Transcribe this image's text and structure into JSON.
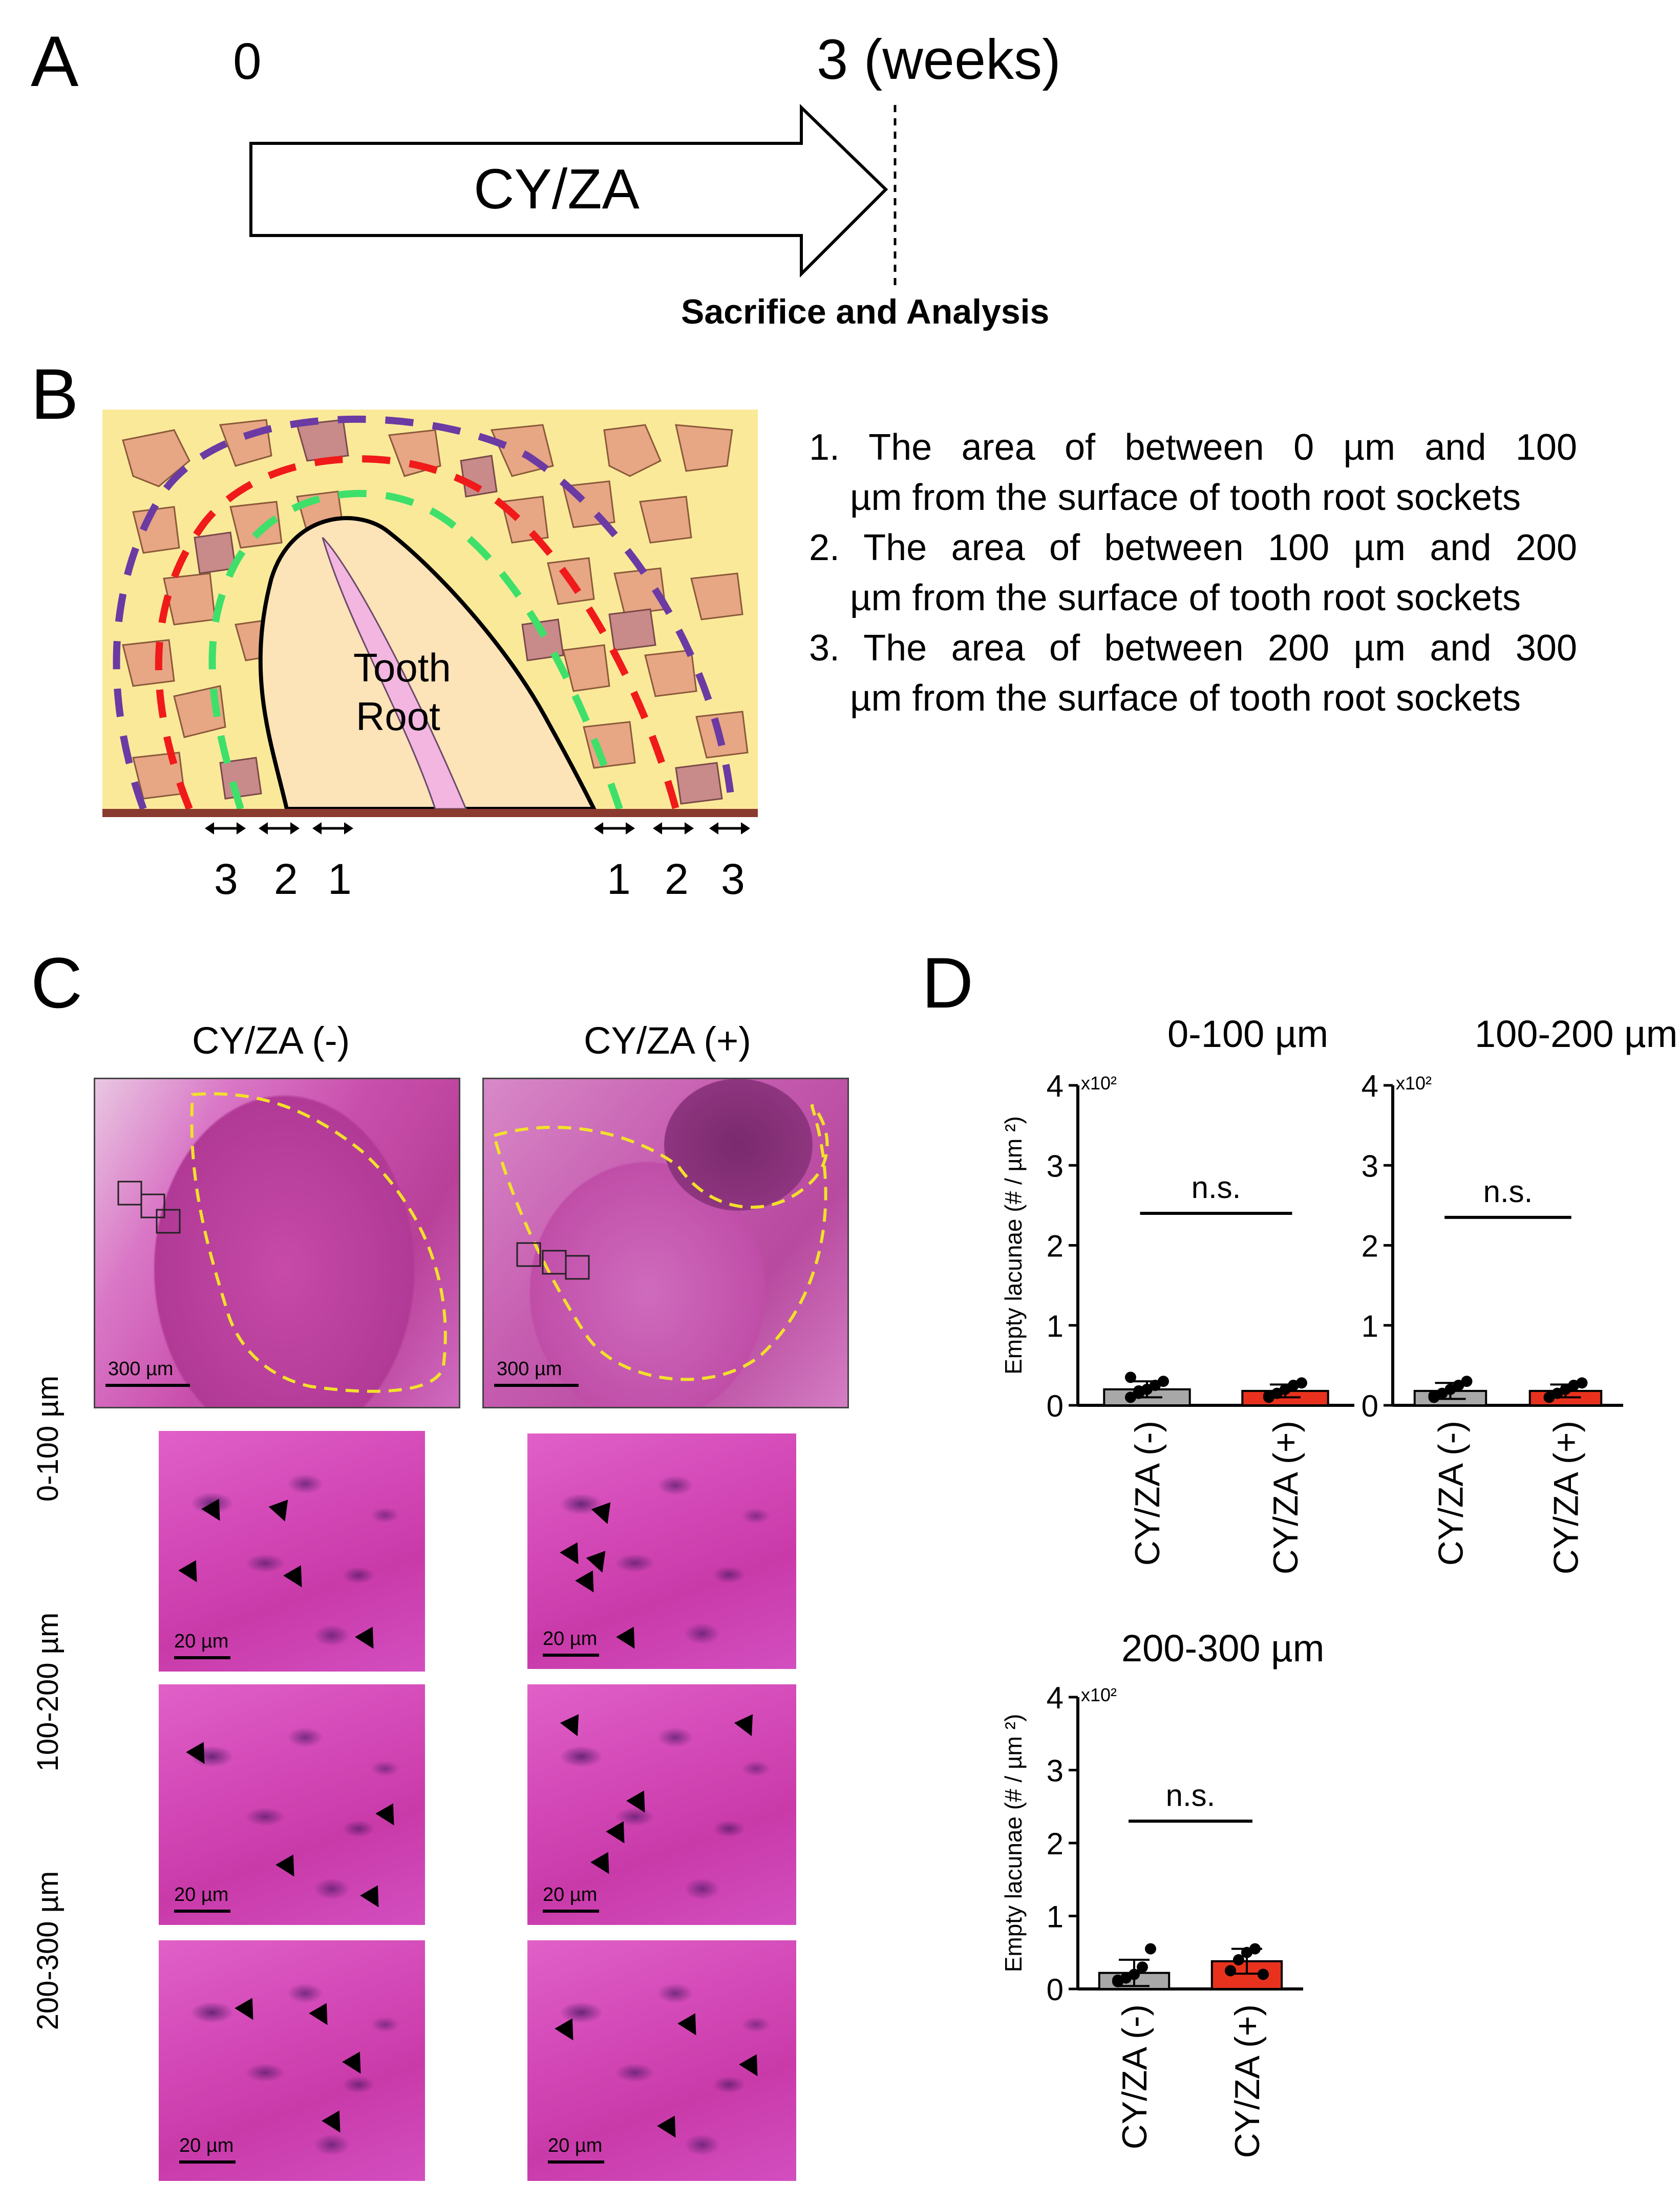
{
  "panelA": {
    "label": "A",
    "start": "0",
    "end": "3 (weeks)",
    "arrow_text": "CY/ZA",
    "footer": "Sacrifice and Analysis"
  },
  "panelB": {
    "label": "B",
    "tooth_label_1": "Tooth",
    "tooth_label_2": "Root",
    "zone_labels_left": [
      "3",
      "2",
      "1"
    ],
    "zone_labels_right": [
      "1",
      "2",
      "3"
    ],
    "descriptions": [
      {
        "num": "1.",
        "line1": "The area of between 0 µm and 100",
        "rest": "µm from the surface of  tooth root sockets"
      },
      {
        "num": "2.",
        "line1": "The area of between 100 µm and 200",
        "rest": "µm from the surface of tooth root sockets"
      },
      {
        "num": "3.",
        "line1": "The area of between 200 µm and 300",
        "rest": "µm from the surface of tooth root sockets"
      }
    ],
    "colors": {
      "tissue_bg": "#fbe99a",
      "green": "#3ee06a",
      "red": "#f01a1a",
      "purple": "#6b3aa3",
      "tooth": "#fde3b8",
      "pulp": "#f2b6e0"
    }
  },
  "panelC": {
    "label": "C",
    "col_minus": "CY/ZA (-)",
    "col_plus": "CY/ZA (+)",
    "overview_scale": "300 µm",
    "micro_scale": "20 µm",
    "rows": [
      "0-100 µm",
      "100-200 µm",
      "200-300 µm"
    ]
  },
  "panelD": {
    "label": "D",
    "ylabel": "Empty lacunae (# / µm ²)",
    "multiplier": "x10²",
    "ns": "n.s."
  },
  "chart_data": [
    {
      "type": "bar",
      "title": "0-100 µm",
      "categories": [
        "CY/ZA (-)",
        "CY/ZA (+)"
      ],
      "values": [
        0.2,
        0.18
      ],
      "errors": [
        0.1,
        0.08
      ],
      "points": [
        [
          0.1,
          0.15,
          0.2,
          0.25,
          0.3,
          0.35,
          0.18
        ],
        [
          0.1,
          0.15,
          0.2,
          0.25,
          0.28,
          0.12
        ]
      ],
      "colors": [
        "#a8a8a8",
        "#e8321e"
      ],
      "ylabel": "Empty lacunae (# / µm ²)",
      "yticks": [
        "0",
        "1",
        "2",
        "3",
        "4"
      ],
      "ylim": [
        0,
        4
      ],
      "multiplier": "x10²",
      "significance": "n.s."
    },
    {
      "type": "bar",
      "title": "100-200 µm",
      "categories": [
        "CY/ZA (-)",
        "CY/ZA (+)"
      ],
      "values": [
        0.18,
        0.18
      ],
      "errors": [
        0.1,
        0.08
      ],
      "points": [
        [
          0.1,
          0.15,
          0.2,
          0.25,
          0.3,
          0.12
        ],
        [
          0.1,
          0.15,
          0.2,
          0.25,
          0.28
        ]
      ],
      "colors": [
        "#a8a8a8",
        "#e8321e"
      ],
      "ylabel": "",
      "yticks": [
        "0",
        "1",
        "2",
        "3",
        "4"
      ],
      "ylim": [
        0,
        4
      ],
      "multiplier": "x10²",
      "significance": "n.s."
    },
    {
      "type": "bar",
      "title": "200-300 µm",
      "categories": [
        "CY/ZA (-)",
        "CY/ZA (+)"
      ],
      "values": [
        0.22,
        0.38
      ],
      "errors": [
        0.18,
        0.17
      ],
      "points": [
        [
          0.1,
          0.15,
          0.2,
          0.3,
          0.55,
          0.12
        ],
        [
          0.25,
          0.4,
          0.5,
          0.55,
          0.2
        ]
      ],
      "colors": [
        "#a8a8a8",
        "#e8321e"
      ],
      "ylabel": "Empty lacunae (# / µm ²)",
      "yticks": [
        "0",
        "1",
        "2",
        "3",
        "4"
      ],
      "ylim": [
        0,
        4
      ],
      "multiplier": "x10²",
      "significance": "n.s."
    }
  ]
}
